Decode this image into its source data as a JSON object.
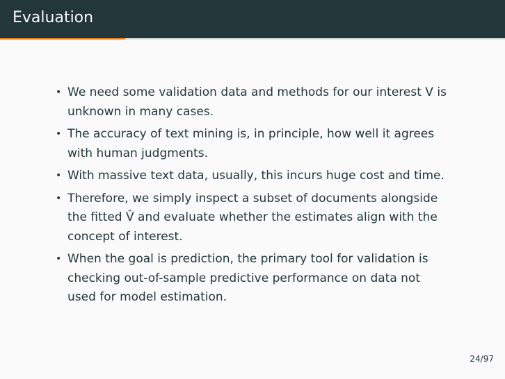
{
  "title": "Evaluation",
  "progress": 0.2474,
  "colors": {
    "title_bg": "#23373b",
    "accent": "#eb811b",
    "text": "#23373b",
    "background": "#fafafa"
  },
  "bullets": [
    {
      "lines": [
        "We need some validation data and methods for our interest V is",
        "unknown in many cases."
      ]
    },
    {
      "lines": [
        "The accuracy of text mining is, in principle, how well it agrees",
        "with human judgments."
      ]
    },
    {
      "lines": [
        "With massive text data, usually, this incurs huge cost and time."
      ]
    },
    {
      "lines": [
        "Therefore, we simply inspect a subset of documents alongside",
        "the fitted V̂ and evaluate whether the estimates align with the",
        "concept of interest."
      ]
    },
    {
      "lines": [
        "When the goal is prediction, the primary tool for validation is",
        "checking out-of-sample predictive performance on data not",
        "used for model estimation."
      ]
    }
  ],
  "page_number": "24/97"
}
